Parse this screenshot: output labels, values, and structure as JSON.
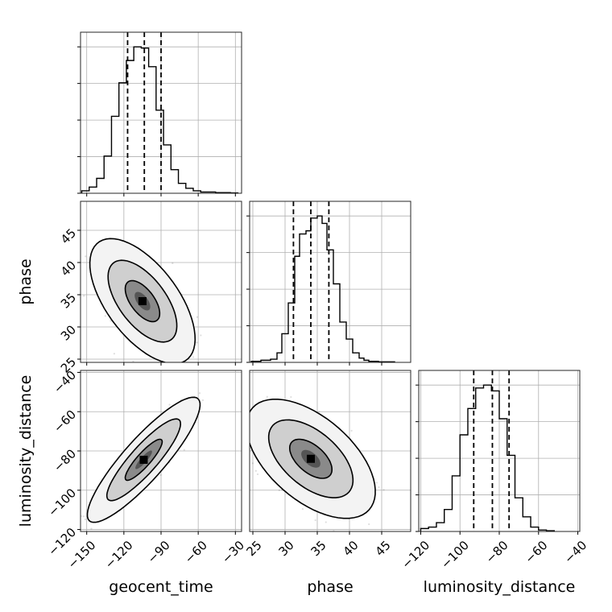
{
  "chart_data": {
    "type": "corner",
    "parameters": [
      "geocent_time",
      "phase",
      "luminosity_distance"
    ],
    "grid": true,
    "axes": {
      "geocent_time": {
        "xlim": [
          -155,
          -25
        ],
        "ticks": [
          -150,
          -120,
          -90,
          -60,
          -30
        ],
        "tick_labels": [
          "−150",
          "−120",
          "−90",
          "−60",
          "−30"
        ]
      },
      "phase": {
        "xlim": [
          24.5,
          49.5
        ],
        "ticks": [
          25,
          30,
          35,
          40,
          45
        ],
        "tick_labels": [
          "25",
          "30",
          "35",
          "40",
          "45"
        ]
      },
      "luminosity_distance": {
        "xlim": [
          -121,
          -39
        ],
        "ticks": [
          -120,
          -100,
          -80,
          -60,
          -40
        ],
        "tick_labels": [
          "−120",
          "−100",
          "−80",
          "−60",
          "−40"
        ]
      }
    },
    "diagonal": [
      {
        "param": "geocent_time",
        "quantiles": [
          -117,
          -103.5,
          -90
        ],
        "bin_edges": [
          -154,
          -148,
          -142,
          -136,
          -130,
          -124,
          -118,
          -112,
          -106,
          -100,
          -94,
          -88,
          -82,
          -76,
          -70,
          -64,
          -58,
          -52,
          -46,
          -40,
          -34,
          -28
        ],
        "counts": [
          2,
          5,
          12,
          30,
          62,
          89,
          107,
          118,
          117,
          102,
          67,
          39,
          19,
          8,
          4,
          2,
          1,
          1,
          0.5,
          0.5,
          0.3
        ]
      },
      {
        "param": "phase",
        "quantiles": [
          31.3,
          34,
          36.8
        ],
        "bin_edges": [
          24.75,
          26.25,
          27.75,
          28.75,
          29.5,
          30.5,
          31.5,
          32.25,
          33.25,
          34,
          35,
          35.75,
          36.5,
          37.5,
          38.5,
          39.5,
          40.5,
          41.5,
          42.25,
          43,
          44.5,
          47
        ],
        "counts": [
          1,
          2,
          3,
          9,
          27,
          56,
          100,
          121,
          124,
          136,
          138,
          131,
          106,
          74,
          38,
          22,
          9,
          4,
          2,
          1,
          0.5
        ]
      },
      {
        "param": "luminosity_distance",
        "quantiles": [
          -93,
          -83.5,
          -75
        ],
        "bin_edges": [
          -120,
          -116,
          -112,
          -108,
          -104,
          -100,
          -96,
          -92,
          -88,
          -84,
          -80,
          -76,
          -72,
          -68,
          -64,
          -60,
          -56,
          -52
        ],
        "counts": [
          2,
          3,
          6,
          15,
          38,
          66,
          84,
          98,
          100,
          96,
          77,
          52,
          23,
          10,
          3,
          1,
          0.5
        ]
      }
    ],
    "pairs": [
      {
        "x": "geocent_time",
        "y": "phase",
        "mean": [
          -105,
          34
        ],
        "sd": [
          14,
          3.2
        ],
        "corr": -0.6,
        "contour_levels": [
          0.39,
          0.86,
          0.99
        ],
        "n_points": 1400
      },
      {
        "x": "geocent_time",
        "y": "luminosity_distance",
        "mean": [
          -104,
          -84.5
        ],
        "sd": [
          15,
          10.5
        ],
        "corr": 0.88,
        "contour_levels": [
          0.39,
          0.86,
          0.99
        ],
        "n_points": 1400
      },
      {
        "x": "phase",
        "y": "luminosity_distance",
        "mean": [
          34,
          -84
        ],
        "sd": [
          3.3,
          10
        ],
        "corr": -0.55,
        "contour_levels": [
          0.39,
          0.86,
          0.99
        ],
        "n_points": 1400
      }
    ]
  }
}
